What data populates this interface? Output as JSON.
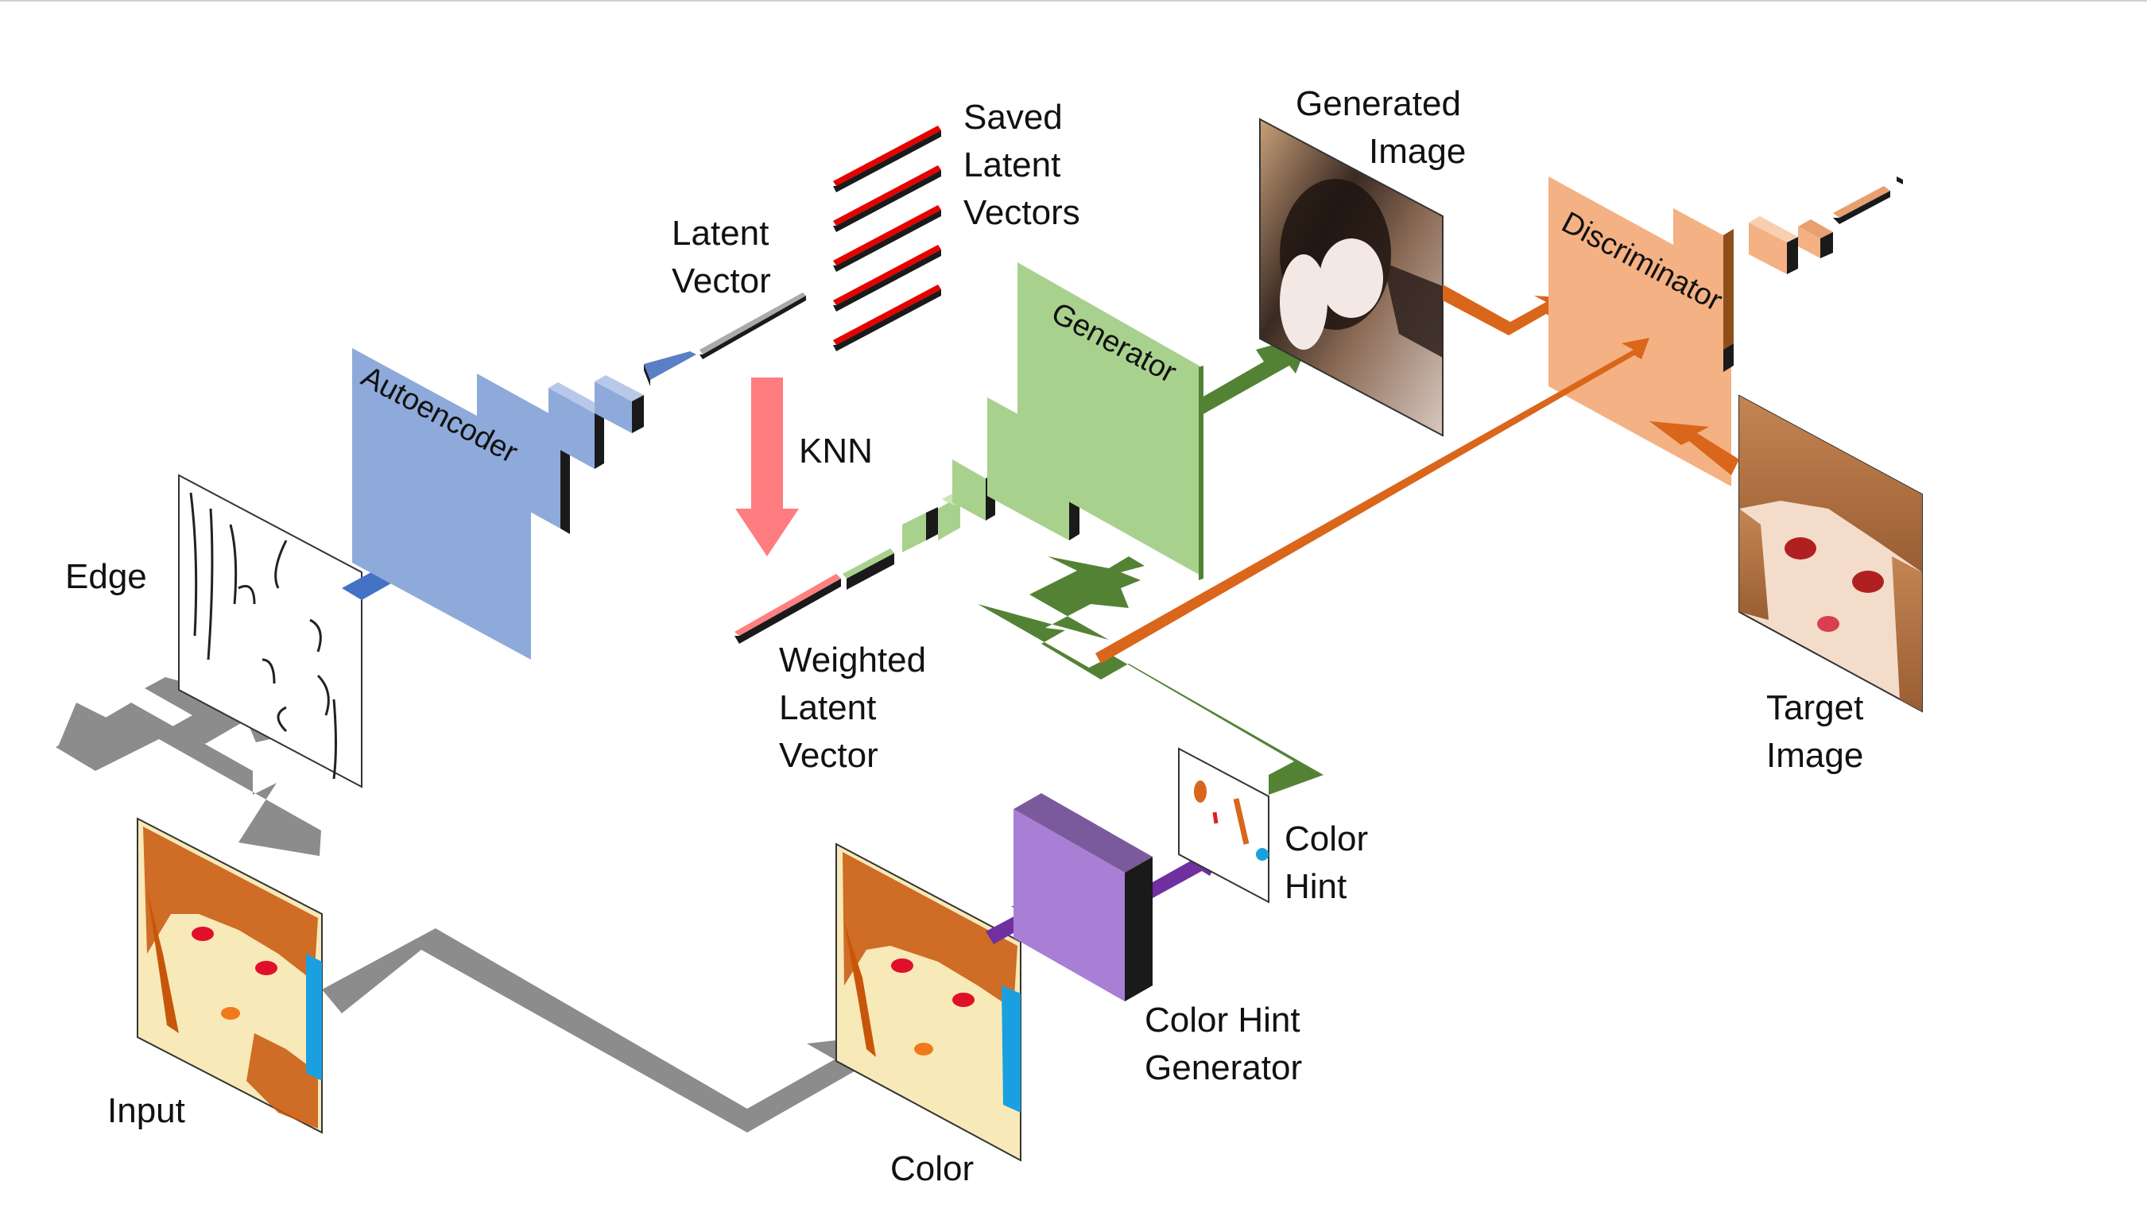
{
  "labels": {
    "edge": "Edge",
    "input": "Input",
    "color": "Color",
    "color_hint_generator_l1": "Color Hint",
    "color_hint_generator_l2": "Generator",
    "color_hint_l1": "Color",
    "color_hint_l2": "Hint",
    "latent_vector_l1": "Latent",
    "latent_vector_l2": "Vector",
    "saved_latent_l1": "Saved",
    "saved_latent_l2": "Latent",
    "saved_latent_l3": "Vectors",
    "knn": "KNN",
    "weighted_l1": "Weighted",
    "weighted_l2": "Latent",
    "weighted_l3": "Vector",
    "generated_l1": "Generated",
    "generated_l2": "Image",
    "target_l1": "Target",
    "target_l2": "Image"
  },
  "blocks": {
    "autoencoder": "Autoencoder",
    "generator": "Generator",
    "discriminator": "Discriminator"
  },
  "colors": {
    "autoencoder": "#8eaadb",
    "generator": "#a9d18e",
    "discriminator": "#f4b183",
    "color_hint_generator": "#a97fd6",
    "gray_arrow": "#8c8c8c",
    "blue_arrow": "#4472c4",
    "green_arrow": "#548235",
    "orange_arrow": "#d9661a",
    "purple_arrow": "#7030a0",
    "knn_arrow": "#ff7c80",
    "latent_red": "#e60000"
  }
}
